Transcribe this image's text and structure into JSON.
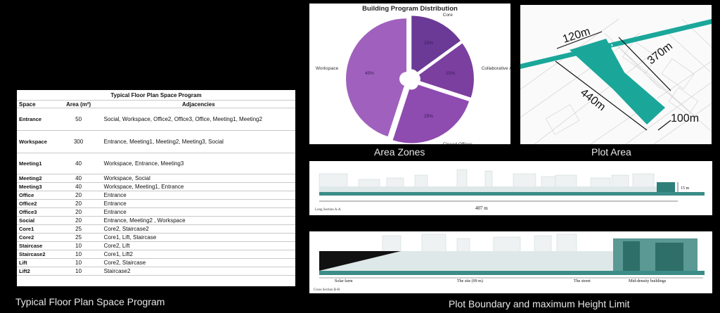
{
  "floor_table": {
    "title": "Typical Floor Plan Space Program",
    "headers": [
      "Space",
      "Area (m²)",
      "Adjacencies"
    ],
    "rows": [
      {
        "space": "Entrance",
        "area": "50",
        "adj": "Social, Workspace, Office2, Office3, Office, Meeting1, Meeting2"
      },
      {
        "space": "Workspace",
        "area": "300",
        "adj": "Entrance, Meeting1, Meeting2, Meeting3, Social"
      },
      {
        "space": "Meeting1",
        "area": "40",
        "adj": "Workspace, Entrance, Meeting3"
      },
      {
        "space": "Meeting2",
        "area": "40",
        "adj": "Workspace, Social"
      },
      {
        "space": "Meeting3",
        "area": "40",
        "adj": "Workspace, Meeting1, Entrance"
      },
      {
        "space": "Office",
        "area": "20",
        "adj": "Entrance"
      },
      {
        "space": "Office2",
        "area": "20",
        "adj": "Entrance"
      },
      {
        "space": "Office3",
        "area": "20",
        "adj": "Entrance"
      },
      {
        "space": "Social",
        "area": "20",
        "adj": "Entrance, Meeting2 , Workspace"
      },
      {
        "space": "Core1",
        "area": "25",
        "adj": "Core2, Staircase2"
      },
      {
        "space": "Core2",
        "area": "25",
        "adj": "Core1, Lift, Staircase"
      },
      {
        "space": "Staircase",
        "area": "10",
        "adj": "Core2, Lift"
      },
      {
        "space": "Staircase2",
        "area": "10",
        "adj": "Core1, Lift2"
      },
      {
        "space": "Lift",
        "area": "10",
        "adj": "Core2, Staircase"
      },
      {
        "space": "Lift2",
        "area": "10",
        "adj": "Staircase2"
      }
    ]
  },
  "captions": {
    "table": "Typical Floor Plan Space Program",
    "pie": "Area Zones",
    "plot": "Plot Area",
    "sections": "Plot Boundary and maximum Height Limit"
  },
  "chart_data": {
    "type": "pie",
    "title": "Building Program Distribution",
    "labels": [
      "Core",
      "Collaborative Area",
      "Closed Offices",
      "Workspace"
    ],
    "values": [
      15,
      15,
      25,
      45
    ],
    "value_labels": [
      "15%",
      "15%",
      "25%",
      "45%"
    ],
    "colors": [
      "#6a3a96",
      "#7b3f9f",
      "#8e4bb0",
      "#a061be"
    ],
    "donut_hole": true,
    "exploded": true
  },
  "plot_area": {
    "labels": [
      "120m",
      "370m",
      "440m",
      "100m"
    ],
    "colors": {
      "site": "#1aa79a",
      "road": "#1aa79a"
    }
  },
  "long_section": {
    "label": "Long Section A-A",
    "length": "407 m",
    "height": "15 m"
  },
  "cross_section": {
    "label": "Cross Section B-B",
    "zones": [
      "Solar farm",
      "The site  (99 m)",
      "The street",
      "Mid-density buildings"
    ]
  }
}
